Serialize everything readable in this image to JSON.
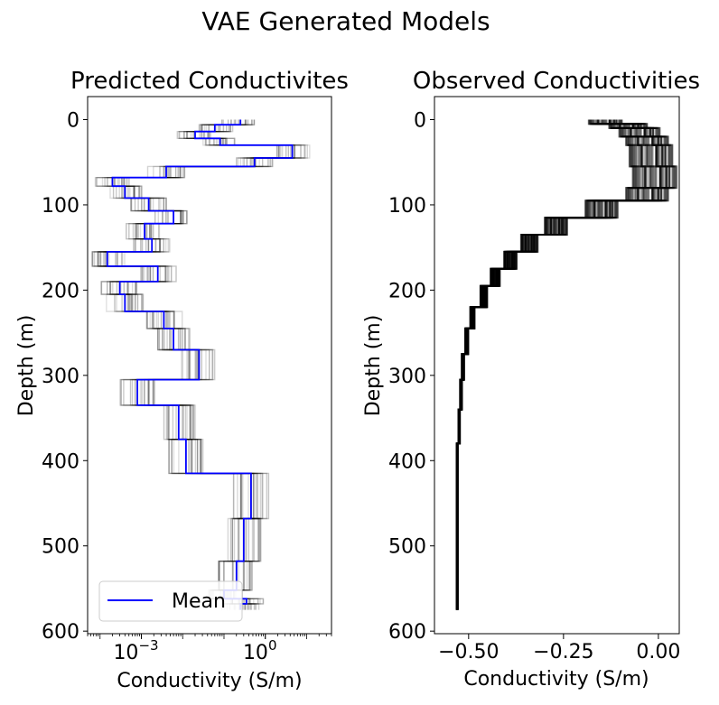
{
  "figure": {
    "suptitle": "VAE Generated Models"
  },
  "colors": {
    "mean": "#0000ff",
    "samples": "#000000",
    "axes": "#000000",
    "background": "#ffffff"
  },
  "chart_data": [
    {
      "type": "line",
      "title": "Predicted Conductivites",
      "xlabel": "Conductivity (S/m)",
      "ylabel": "Depth (m)",
      "x_scale": "log",
      "xlim": [
        5e-05,
        40
      ],
      "ylim": [
        603,
        -27
      ],
      "y_inverted": true,
      "xticks": [
        {
          "value": 0.001,
          "base": "10",
          "exp": "−3"
        },
        {
          "value": 1,
          "base": "10",
          "exp": "0"
        }
      ],
      "yticks": [
        0,
        100,
        200,
        300,
        400,
        500,
        600
      ],
      "legend": {
        "location": "lower-left",
        "entries": [
          "Mean"
        ]
      },
      "mean_steps": [
        {
          "depth_top": 0,
          "depth_bottom": 6,
          "conductivity": 0.25
        },
        {
          "depth_top": 6,
          "depth_bottom": 14,
          "conductivity": 0.06
        },
        {
          "depth_top": 14,
          "depth_bottom": 22,
          "conductivity": 0.02
        },
        {
          "depth_top": 22,
          "depth_bottom": 30,
          "conductivity": 0.08
        },
        {
          "depth_top": 30,
          "depth_bottom": 45,
          "conductivity": 4.5
        },
        {
          "depth_top": 45,
          "depth_bottom": 55,
          "conductivity": 0.55
        },
        {
          "depth_top": 55,
          "depth_bottom": 68,
          "conductivity": 0.004
        },
        {
          "depth_top": 68,
          "depth_bottom": 78,
          "conductivity": 0.0002
        },
        {
          "depth_top": 78,
          "depth_bottom": 92,
          "conductivity": 0.0004
        },
        {
          "depth_top": 92,
          "depth_bottom": 107,
          "conductivity": 0.0015
        },
        {
          "depth_top": 107,
          "depth_bottom": 122,
          "conductivity": 0.006
        },
        {
          "depth_top": 122,
          "depth_bottom": 140,
          "conductivity": 0.0012
        },
        {
          "depth_top": 140,
          "depth_bottom": 155,
          "conductivity": 0.0018
        },
        {
          "depth_top": 155,
          "depth_bottom": 172,
          "conductivity": 0.00015
        },
        {
          "depth_top": 172,
          "depth_bottom": 190,
          "conductivity": 0.0025
        },
        {
          "depth_top": 190,
          "depth_bottom": 205,
          "conductivity": 0.0003
        },
        {
          "depth_top": 205,
          "depth_bottom": 225,
          "conductivity": 0.0004
        },
        {
          "depth_top": 225,
          "depth_bottom": 245,
          "conductivity": 0.0035
        },
        {
          "depth_top": 245,
          "depth_bottom": 270,
          "conductivity": 0.006
        },
        {
          "depth_top": 270,
          "depth_bottom": 305,
          "conductivity": 0.025
        },
        {
          "depth_top": 305,
          "depth_bottom": 335,
          "conductivity": 0.0008
        },
        {
          "depth_top": 335,
          "depth_bottom": 375,
          "conductivity": 0.008
        },
        {
          "depth_top": 375,
          "depth_bottom": 415,
          "conductivity": 0.012
        },
        {
          "depth_top": 415,
          "depth_bottom": 468,
          "conductivity": 0.45
        },
        {
          "depth_top": 468,
          "depth_bottom": 518,
          "conductivity": 0.3
        },
        {
          "depth_top": 518,
          "depth_bottom": 552,
          "conductivity": 0.2
        },
        {
          "depth_top": 552,
          "depth_bottom": 562,
          "conductivity": 0.1
        },
        {
          "depth_top": 562,
          "depth_bottom": 568,
          "conductivity": 0.35
        },
        {
          "depth_top": 568,
          "depth_bottom": 575,
          "conductivity": 0.25
        }
      ]
    },
    {
      "type": "line",
      "title": "Observed Conductivities",
      "xlabel": "Conductivity (S/m)",
      "ylabel": "Depth (m)",
      "x_scale": "linear",
      "xlim": [
        -0.59,
        0.055
      ],
      "ylim": [
        603,
        -27
      ],
      "y_inverted": true,
      "xticks": [
        {
          "value": -0.5,
          "label": "−0.50"
        },
        {
          "value": -0.25,
          "label": "−0.25"
        },
        {
          "value": 0,
          "label": "0.00"
        }
      ],
      "yticks": [
        0,
        100,
        200,
        300,
        400,
        500,
        600
      ],
      "observed_profile": [
        {
          "depth_top": 0,
          "depth_bottom": 5,
          "conductivity": -0.14
        },
        {
          "depth_top": 5,
          "depth_bottom": 10,
          "conductivity": -0.08
        },
        {
          "depth_top": 10,
          "depth_bottom": 20,
          "conductivity": -0.05
        },
        {
          "depth_top": 20,
          "depth_bottom": 30,
          "conductivity": -0.03
        },
        {
          "depth_top": 30,
          "depth_bottom": 55,
          "conductivity": -0.02
        },
        {
          "depth_top": 55,
          "depth_bottom": 80,
          "conductivity": -0.01
        },
        {
          "depth_top": 80,
          "depth_bottom": 95,
          "conductivity": -0.03
        },
        {
          "depth_top": 95,
          "depth_bottom": 115,
          "conductivity": -0.15
        },
        {
          "depth_top": 115,
          "depth_bottom": 135,
          "conductivity": -0.27
        },
        {
          "depth_top": 135,
          "depth_bottom": 155,
          "conductivity": -0.34
        },
        {
          "depth_top": 155,
          "depth_bottom": 175,
          "conductivity": -0.39
        },
        {
          "depth_top": 175,
          "depth_bottom": 195,
          "conductivity": -0.43
        },
        {
          "depth_top": 195,
          "depth_bottom": 220,
          "conductivity": -0.46
        },
        {
          "depth_top": 220,
          "depth_bottom": 245,
          "conductivity": -0.49
        },
        {
          "depth_top": 245,
          "depth_bottom": 275,
          "conductivity": -0.505
        },
        {
          "depth_top": 275,
          "depth_bottom": 305,
          "conductivity": -0.515
        },
        {
          "depth_top": 305,
          "depth_bottom": 340,
          "conductivity": -0.52
        },
        {
          "depth_top": 340,
          "depth_bottom": 380,
          "conductivity": -0.525
        },
        {
          "depth_top": 380,
          "depth_bottom": 575,
          "conductivity": -0.53
        }
      ]
    }
  ]
}
